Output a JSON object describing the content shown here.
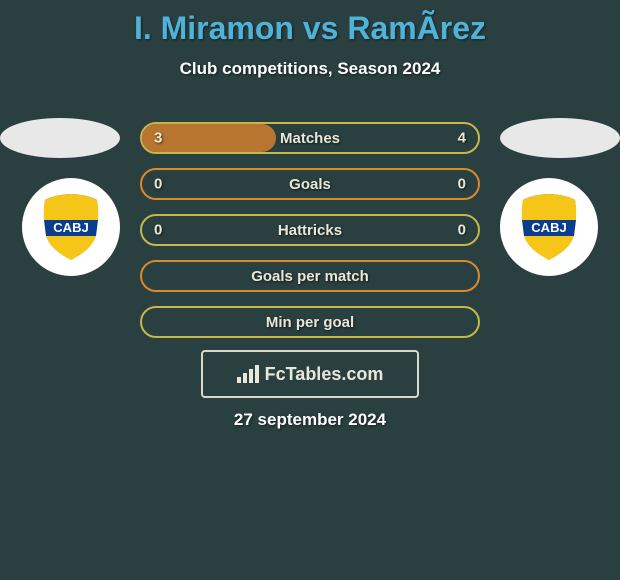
{
  "title": "I. Miramon vs RamÃ­rez",
  "subtitle": "Club competitions, Season 2024",
  "date": "27 september 2024",
  "brand": "FcTables.com",
  "colors": {
    "background": "#2a3f3f",
    "title": "#4fb3d9",
    "text_light": "#ffffff",
    "stat_text": "#e8e8d8",
    "border_olive": "#c4b84a",
    "border_orange": "#d98a2a",
    "fill_olive": "#8a8a5a",
    "fill_orange": "#b87530"
  },
  "club": {
    "name": "CABJ",
    "shield_top": "#f5c518",
    "shield_mid": "#0a3d8f",
    "shield_text": "#ffffff"
  },
  "stats": [
    {
      "label": "Matches",
      "left_val": "3",
      "right_val": "4",
      "border": "#c4b84a",
      "fill_color": "#b87530",
      "fill_side": "left",
      "fill_pct": 40
    },
    {
      "label": "Goals",
      "left_val": "0",
      "right_val": "0",
      "border": "#d98a2a",
      "fill_color": null,
      "fill_side": null,
      "fill_pct": 0
    },
    {
      "label": "Hattricks",
      "left_val": "0",
      "right_val": "0",
      "border": "#c4b84a",
      "fill_color": null,
      "fill_side": null,
      "fill_pct": 0
    },
    {
      "label": "Goals per match",
      "left_val": "",
      "right_val": "",
      "border": "#d98a2a",
      "fill_color": null,
      "fill_side": null,
      "fill_pct": 0
    },
    {
      "label": "Min per goal",
      "left_val": "",
      "right_val": "",
      "border": "#c4b84a",
      "fill_color": null,
      "fill_side": null,
      "fill_pct": 0
    }
  ]
}
